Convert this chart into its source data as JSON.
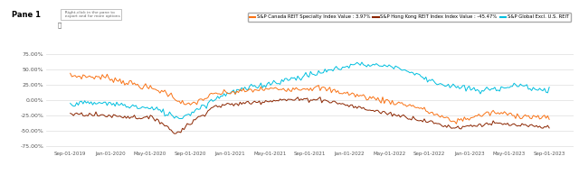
{
  "title": "Pane 1",
  "legend": [
    {
      "label": "S&P Canada REIT Specialty Index Value : 3.97%",
      "color": "#F97316"
    },
    {
      "label": "S&P Hong Kong REIT Index Index Value : -45.47%",
      "color": "#8B2500"
    },
    {
      "label": "S&P Global Excl. U.S. REIT",
      "color": "#00BFDF"
    }
  ],
  "x_ticks": [
    "Sep-01-2019",
    "Jan-01-2020",
    "May-01-2020",
    "Sep-01-2020",
    "Jan-01-2021",
    "May-01-2021",
    "Sep-01-2021",
    "Jan-01-2022",
    "May-01-2022",
    "Sep-01-2022",
    "Jan-01-2023",
    "May-01-2023",
    "Sep-01-2023"
  ],
  "y_ticks": [
    "75.00%",
    "50.00%",
    "25.00%",
    "0.00%",
    "-25.00%",
    "-50.00%",
    "-75.00%"
  ],
  "y_values": [
    75,
    50,
    25,
    0,
    -25,
    -50,
    -75
  ],
  "ylim": [
    -80,
    80
  ],
  "background_color": "#ffffff",
  "grid_color": "#dddddd",
  "canada_color": "#F97316",
  "hk_color": "#8B2500",
  "global_color": "#00BFDF"
}
